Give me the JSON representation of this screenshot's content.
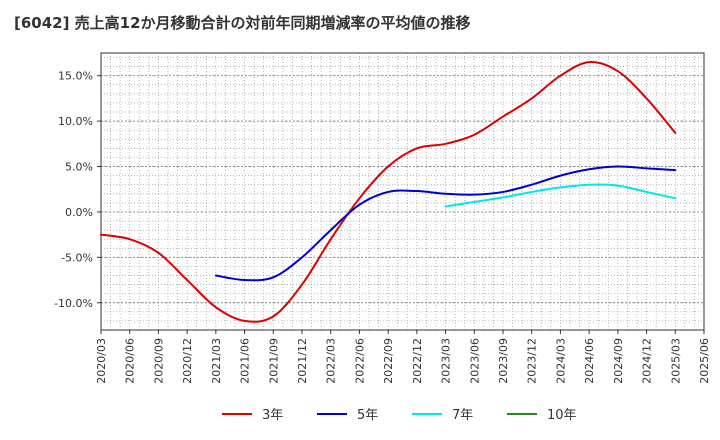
{
  "chart_data": {
    "type": "line",
    "title": "[6042]  売上高12か月移動合計の対前年同期増減率の平均値の推移",
    "xlabel": "",
    "ylabel": "",
    "x_ticks": [
      "2020/03",
      "2020/06",
      "2020/09",
      "2020/12",
      "2021/03",
      "2021/06",
      "2021/09",
      "2021/12",
      "2022/03",
      "2022/06",
      "2022/09",
      "2022/12",
      "2023/03",
      "2023/06",
      "2023/09",
      "2023/12",
      "2024/03",
      "2024/06",
      "2024/09",
      "2024/12",
      "2025/03",
      "2025/06"
    ],
    "y_ticks": [
      "-10.0%",
      "-5.0%",
      "0.0%",
      "5.0%",
      "10.0%",
      "15.0%"
    ],
    "y_tick_values": [
      -10,
      -5,
      0,
      5,
      10,
      15
    ],
    "ylim": [
      -13,
      17.5
    ],
    "grid": true,
    "legend_position": "bottom",
    "series": [
      {
        "name": "3年",
        "color": "#dd0000",
        "x": [
          "2020/03",
          "2020/06",
          "2020/09",
          "2020/12",
          "2021/03",
          "2021/06",
          "2021/09",
          "2021/12",
          "2022/03",
          "2022/06",
          "2022/09",
          "2022/12",
          "2023/03",
          "2023/06",
          "2023/09",
          "2023/12",
          "2024/03",
          "2024/06",
          "2024/09",
          "2024/12",
          "2025/03"
        ],
        "values": [
          -2.5,
          -3.0,
          -4.5,
          -7.5,
          -10.5,
          -12.0,
          -11.5,
          -8.0,
          -3.0,
          1.5,
          5.0,
          7.0,
          7.5,
          8.5,
          10.5,
          12.5,
          15.0,
          16.5,
          15.5,
          12.5,
          8.7
        ]
      },
      {
        "name": "5年",
        "color": "#0000cc",
        "x": [
          "2021/03",
          "2021/06",
          "2021/09",
          "2021/12",
          "2022/03",
          "2022/06",
          "2022/09",
          "2022/12",
          "2023/03",
          "2023/06",
          "2023/09",
          "2023/12",
          "2024/03",
          "2024/06",
          "2024/09",
          "2024/12",
          "2025/03"
        ],
        "values": [
          -7.0,
          -7.5,
          -7.2,
          -5.0,
          -2.0,
          0.8,
          2.2,
          2.3,
          2.0,
          1.9,
          2.2,
          3.0,
          4.0,
          4.7,
          5.0,
          4.8,
          4.6
        ]
      },
      {
        "name": "7年",
        "color": "#00e5ee",
        "x": [
          "2023/03",
          "2023/06",
          "2023/09",
          "2023/12",
          "2024/03",
          "2024/06",
          "2024/09",
          "2024/12",
          "2025/03"
        ],
        "values": [
          0.6,
          1.1,
          1.6,
          2.2,
          2.7,
          3.0,
          2.9,
          2.2,
          1.5
        ]
      },
      {
        "name": "10年",
        "color": "#228b22",
        "x": [],
        "values": []
      }
    ]
  }
}
